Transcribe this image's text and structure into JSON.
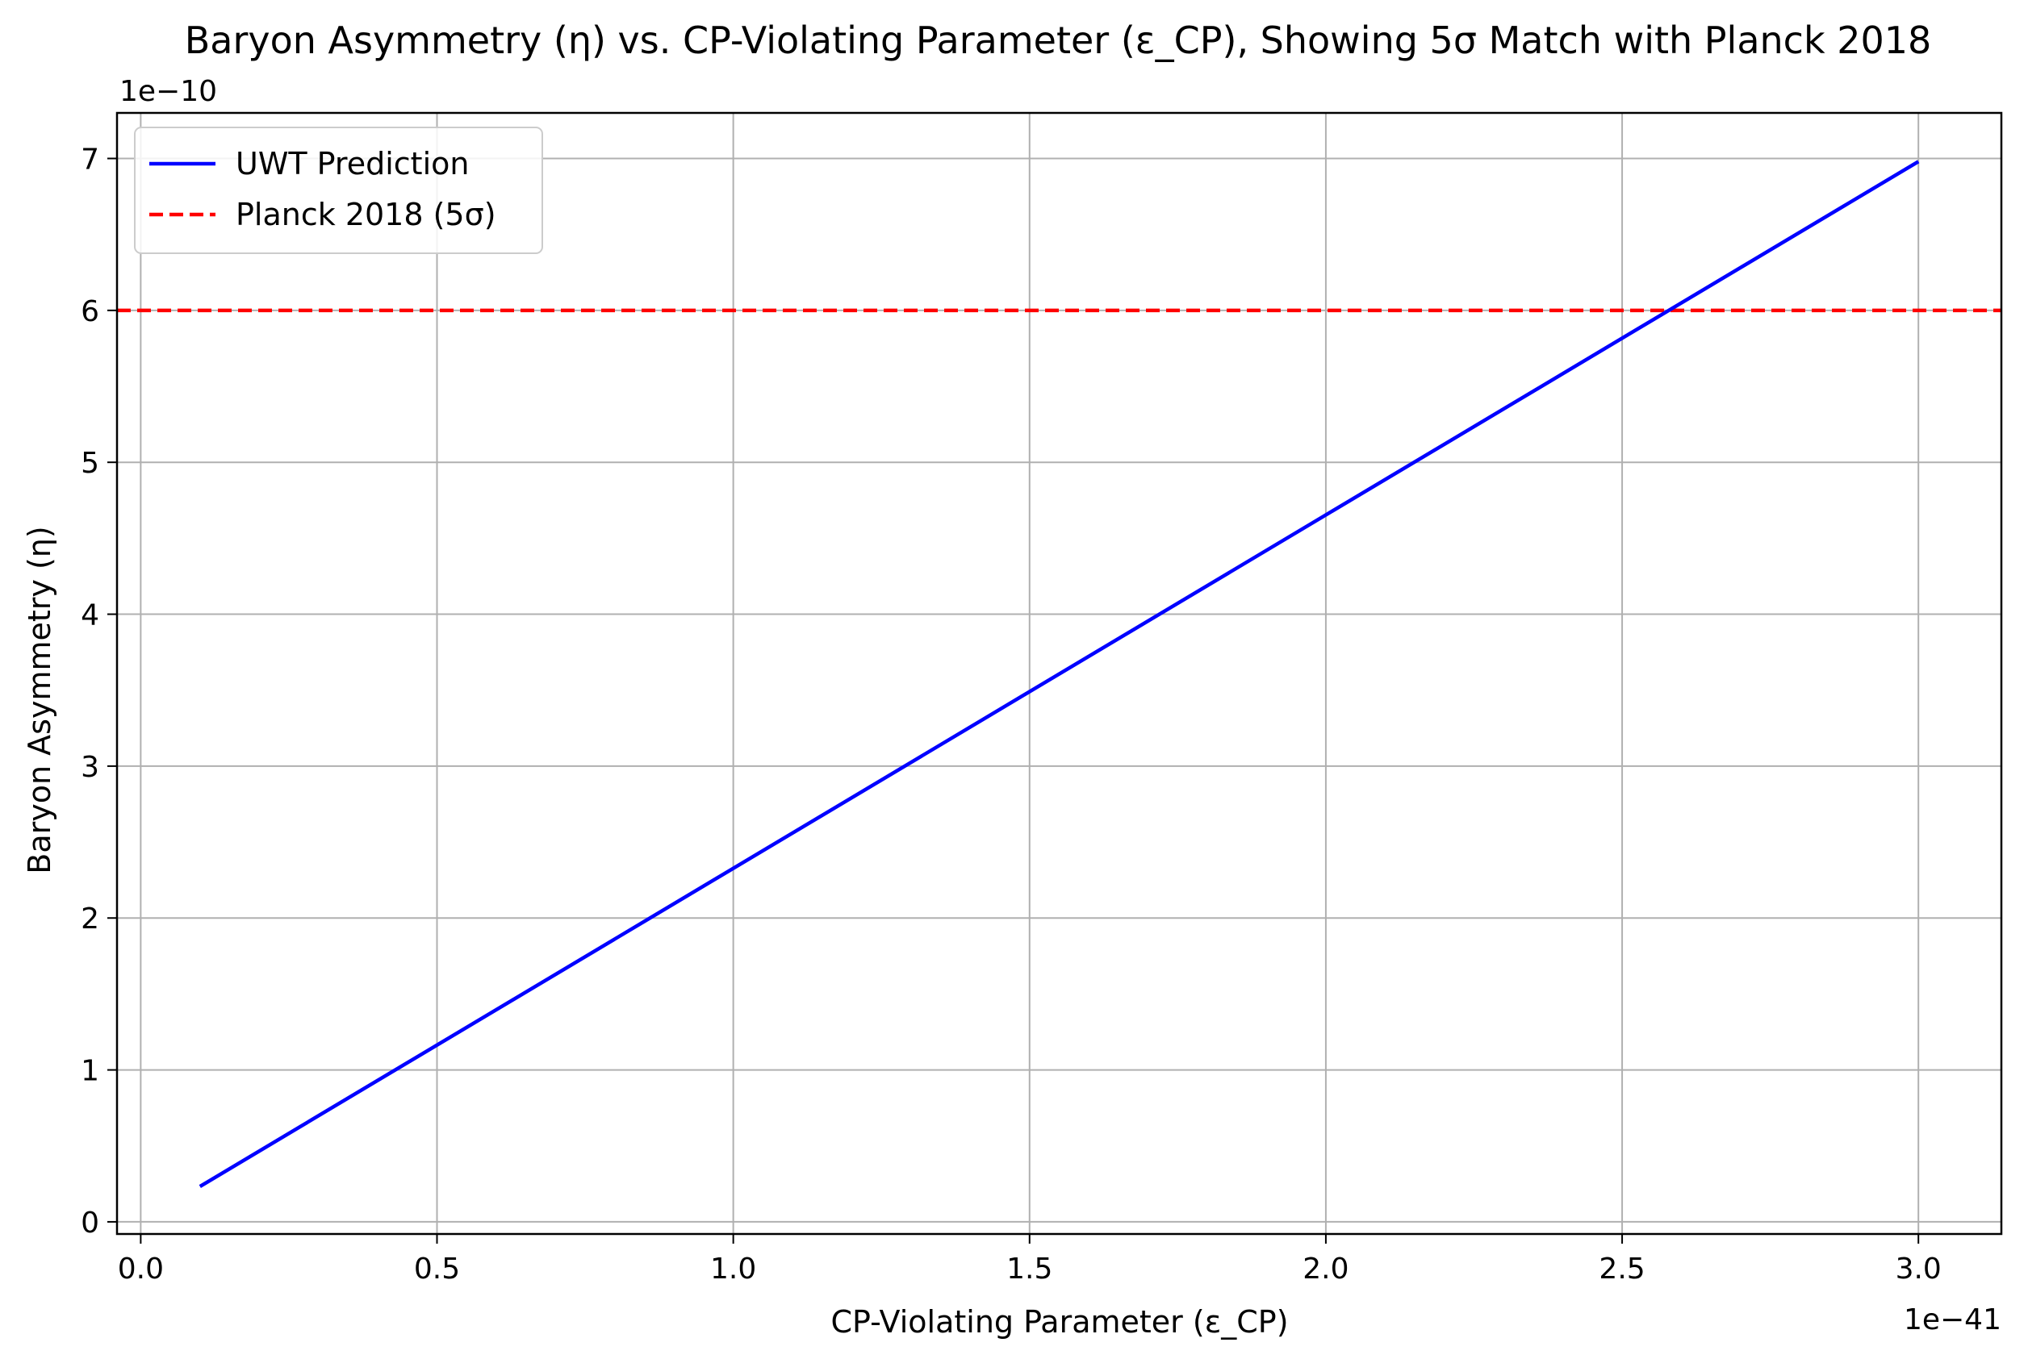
{
  "chart_data": {
    "type": "line",
    "title": "Baryon Asymmetry (η) vs. CP-Violating Parameter (ε_CP), Showing 5σ Match with Planck 2018",
    "xlabel": "CP-Violating Parameter (ε_CP)",
    "ylabel": "Baryon Asymmetry (η)",
    "x_offset_label": "1e−41",
    "y_offset_label": "1e−10",
    "xlim": [
      -0.04,
      3.14
    ],
    "ylim": [
      -0.08,
      7.3
    ],
    "x_scale_factor": 1e-41,
    "y_scale_factor": 1e-10,
    "xticks": [
      0.0,
      0.5,
      1.0,
      1.5,
      2.0,
      2.5,
      3.0
    ],
    "xtick_labels": [
      "0.0",
      "0.5",
      "1.0",
      "1.5",
      "2.0",
      "2.5",
      "3.0"
    ],
    "yticks": [
      0,
      1,
      2,
      3,
      4,
      5,
      6,
      7
    ],
    "ytick_labels": [
      "0",
      "1",
      "2",
      "3",
      "4",
      "5",
      "6",
      "7"
    ],
    "grid": true,
    "legend_position": "upper-left",
    "series": [
      {
        "name": "UWT Prediction",
        "style": "solid",
        "color": "#0000ff",
        "x": [
          0.1,
          3.0
        ],
        "y": [
          0.233,
          6.98
        ]
      },
      {
        "name": "Planck 2018 (5σ)",
        "style": "dashed",
        "color": "#ff0000",
        "hline": 6.0
      }
    ]
  }
}
